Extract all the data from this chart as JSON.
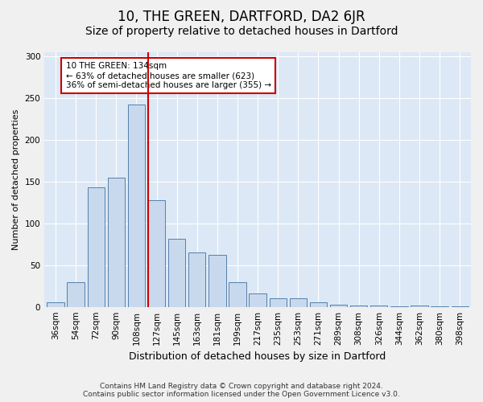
{
  "title": "10, THE GREEN, DARTFORD, DA2 6JR",
  "subtitle": "Size of property relative to detached houses in Dartford",
  "xlabel": "Distribution of detached houses by size in Dartford",
  "ylabel": "Number of detached properties",
  "footer_line1": "Contains HM Land Registry data © Crown copyright and database right 2024.",
  "footer_line2": "Contains public sector information licensed under the Open Government Licence v3.0.",
  "categories": [
    "36sqm",
    "54sqm",
    "72sqm",
    "90sqm",
    "108sqm",
    "127sqm",
    "145sqm",
    "163sqm",
    "181sqm",
    "199sqm",
    "217sqm",
    "235sqm",
    "253sqm",
    "271sqm",
    "289sqm",
    "308sqm",
    "326sqm",
    "344sqm",
    "362sqm",
    "380sqm",
    "398sqm"
  ],
  "bar_values": [
    5,
    30,
    143,
    155,
    242,
    128,
    82,
    65,
    62,
    30,
    16,
    10,
    10,
    5,
    3,
    2,
    2,
    1,
    2,
    1,
    1
  ],
  "bar_color": "#c9d9ed",
  "bar_edge_color": "#5580aa",
  "annotation_text": "10 THE GREEN: 134sqm\n← 63% of detached houses are smaller (623)\n36% of semi-detached houses are larger (355) →",
  "annotation_box_color": "#ffffff",
  "annotation_box_edge": "#cc0000",
  "vline_color": "#cc0000",
  "vline_index": 5,
  "ylim": [
    0,
    305
  ],
  "yticks": [
    0,
    50,
    100,
    150,
    200,
    250,
    300
  ],
  "fig_bg_color": "#f0f0f0",
  "plot_bg_color": "#dce8f5",
  "grid_color": "#ffffff",
  "title_fontsize": 12,
  "subtitle_fontsize": 10,
  "xlabel_fontsize": 9,
  "ylabel_fontsize": 8,
  "tick_fontsize": 7.5,
  "annotation_fontsize": 7.5,
  "footer_fontsize": 6.5
}
